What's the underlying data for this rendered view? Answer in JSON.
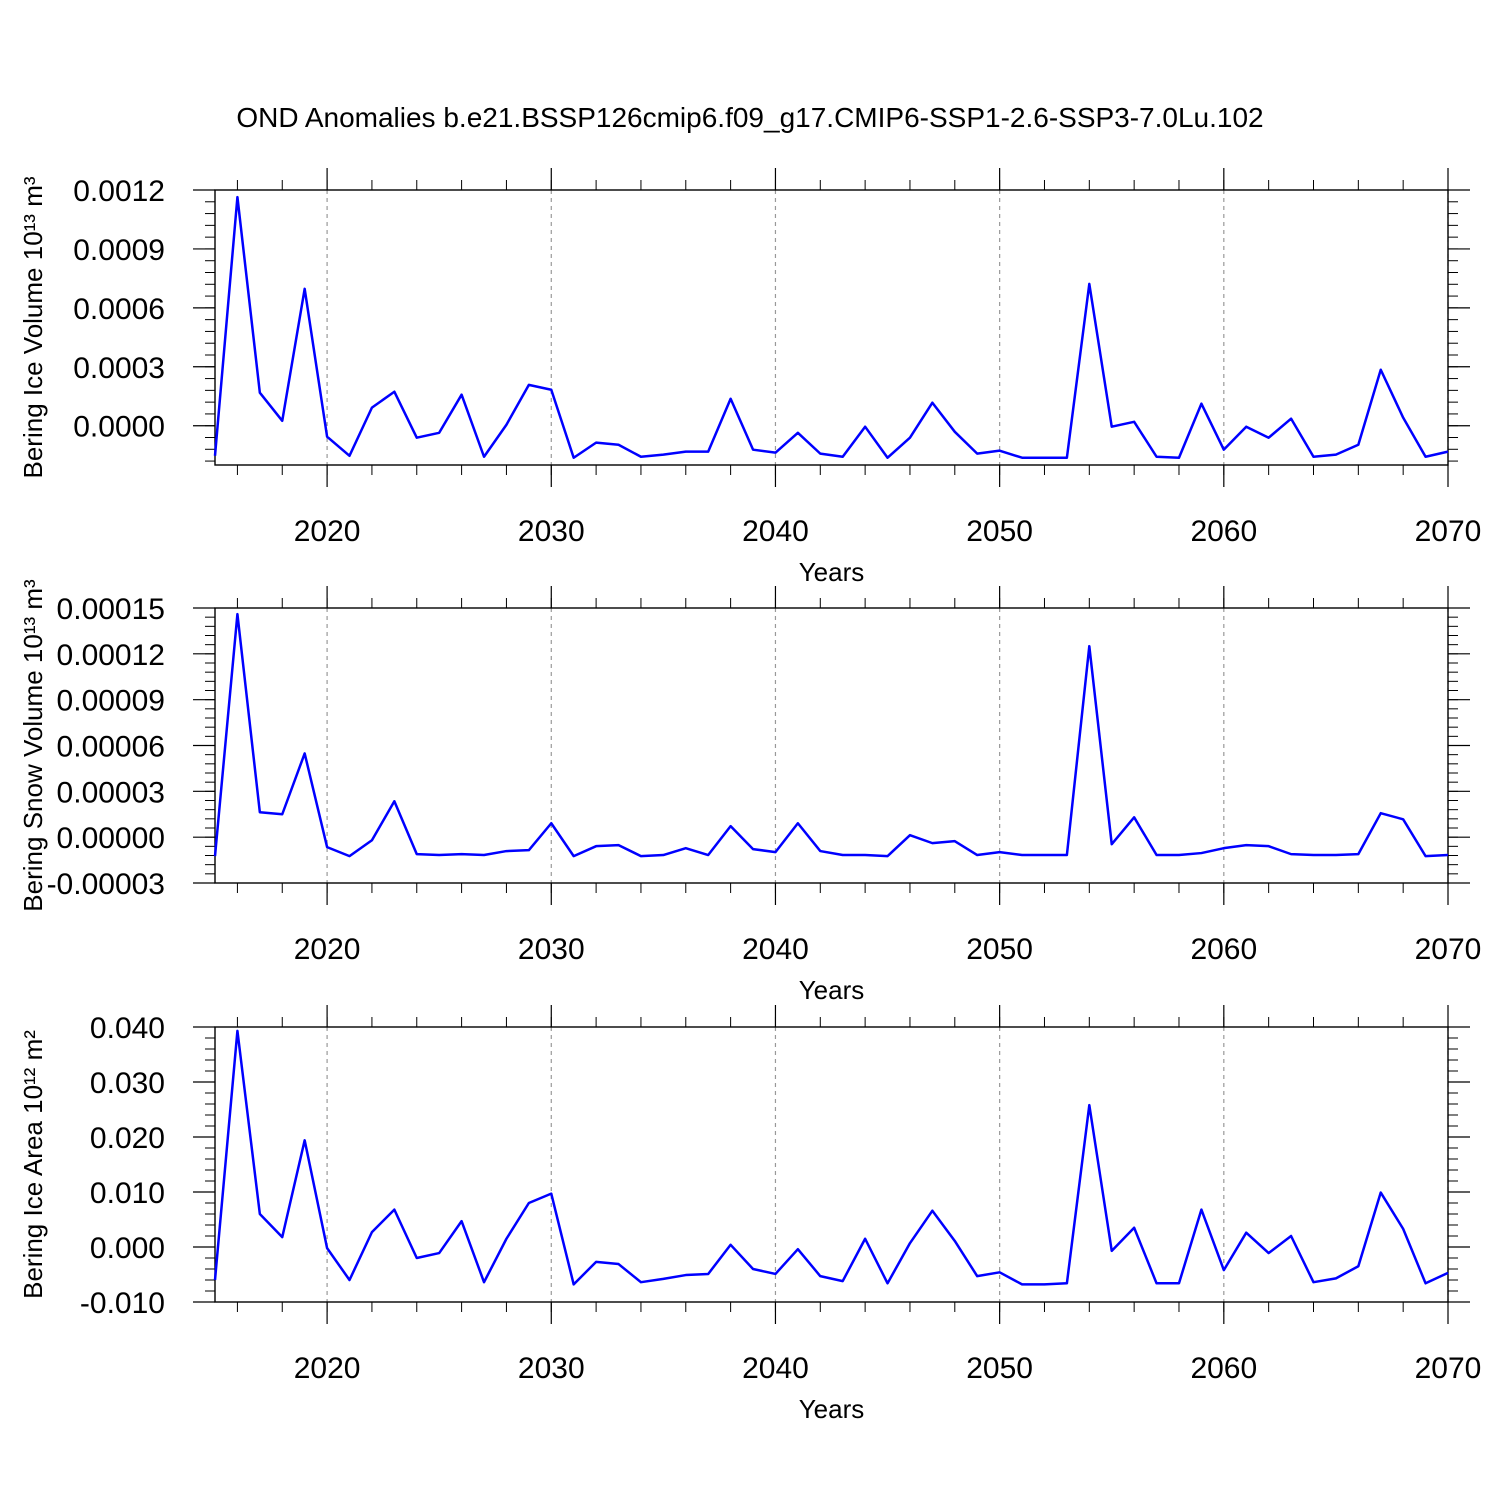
{
  "chart_data": [
    {
      "type": "line",
      "title": "OND Anomalies b.e21.BSSP126cmip6.f09_g17.CMIP6-SSP1-2.6-SSP3-7.0Lu.102",
      "ylabel": "Bering Ice Volume 10¹³ m³",
      "xlabel": "Years",
      "color": "#0000ff",
      "grid": "x",
      "xlim": [
        2015,
        2070
      ],
      "xticks": [
        2020,
        2030,
        2040,
        2050,
        2060,
        2070
      ],
      "ylim": [
        -0.0002,
        0.0012
      ],
      "yticks": [
        {
          "value": 0,
          "label": "0.0000"
        },
        {
          "value": 0.0003,
          "label": "0.0003"
        },
        {
          "value": 0.0006,
          "label": "0.0006"
        },
        {
          "value": 0.0009,
          "label": "0.0009"
        },
        {
          "value": 0.0012,
          "label": "0.0012"
        }
      ],
      "x": [
        2015,
        2016,
        2017,
        2018,
        2019,
        2020,
        2021,
        2022,
        2023,
        2024,
        2025,
        2026,
        2027,
        2028,
        2029,
        2030,
        2031,
        2032,
        2033,
        2034,
        2035,
        2036,
        2037,
        2038,
        2039,
        2040,
        2041,
        2042,
        2043,
        2044,
        2045,
        2046,
        2047,
        2048,
        2049,
        2050,
        2051,
        2052,
        2053,
        2054,
        2055,
        2056,
        2057,
        2058,
        2059,
        2060,
        2061,
        2062,
        2063,
        2064,
        2065,
        2066,
        2067,
        2068,
        2069,
        2070
      ],
      "values": [
        -0.000153,
        0.001164,
        0.000168,
        2.5e-05,
        0.000697,
        -5.6e-05,
        -0.000153,
        9.2e-05,
        0.000173,
        -6.1e-05,
        -3.6e-05,
        0.000158,
        -0.000158,
        5e-06,
        0.000208,
        0.000183,
        -0.000163,
        -8.6e-05,
        -9.7e-05,
        -0.000158,
        -0.000147,
        -0.000132,
        -0.000132,
        0.000137,
        -0.000122,
        -0.000137,
        -3.6e-05,
        -0.000142,
        -0.000158,
        -5e-06,
        -0.000163,
        -6.1e-05,
        0.000117,
        -3.1e-05,
        -0.000142,
        -0.000127,
        -0.000163,
        -0.000163,
        -0.000163,
        0.000722,
        -5e-06,
        2e-05,
        -0.000158,
        -0.000163,
        0.000112,
        -0.000122,
        -5e-06,
        -6.1e-05,
        3.6e-05,
        -0.000158,
        -0.000147,
        -9.7e-05,
        0.000285,
        4.1e-05,
        -0.000158,
        -0.000132
      ]
    },
    {
      "type": "line",
      "ylabel": "Bering Snow Volume 10¹³ m³",
      "xlabel": "Years",
      "color": "#0000ff",
      "grid": "x",
      "xlim": [
        2015,
        2070
      ],
      "xticks": [
        2020,
        2030,
        2040,
        2050,
        2060,
        2070
      ],
      "ylim": [
        -3e-05,
        0.00015
      ],
      "yticks": [
        {
          "value": -3e-05,
          "label": "-0.00003"
        },
        {
          "value": 0,
          "label": "0.00000"
        },
        {
          "value": 3e-05,
          "label": "0.00003"
        },
        {
          "value": 6e-05,
          "label": "0.00006"
        },
        {
          "value": 9e-05,
          "label": "0.00009"
        },
        {
          "value": 0.00012,
          "label": "0.00012"
        },
        {
          "value": 0.00015,
          "label": "0.00015"
        }
      ],
      "x": [
        2015,
        2016,
        2017,
        2018,
        2019,
        2020,
        2021,
        2022,
        2023,
        2024,
        2025,
        2026,
        2027,
        2028,
        2029,
        2030,
        2031,
        2032,
        2033,
        2034,
        2035,
        2036,
        2037,
        2038,
        2039,
        2040,
        2041,
        2042,
        2043,
        2044,
        2045,
        2046,
        2047,
        2048,
        2049,
        2050,
        2051,
        2052,
        2053,
        2054,
        2055,
        2056,
        2057,
        2058,
        2059,
        2060,
        2061,
        2062,
        2063,
        2064,
        2065,
        2066,
        2067,
        2068,
        2069,
        2070
      ],
      "values": [
        -1.24e-05,
        0.000146,
        1.63e-05,
        1.5e-05,
        5.48e-05,
        -6.5e-06,
        -1.24e-05,
        -2e-06,
        2.35e-05,
        -1.11e-05,
        -1.17e-05,
        -1.11e-05,
        -1.17e-05,
        -9.1e-06,
        -8.5e-06,
        9.1e-06,
        -1.24e-05,
        -5.9e-06,
        -5.2e-06,
        -1.24e-05,
        -1.17e-05,
        -7.2e-06,
        -1.17e-05,
        7.2e-06,
        -7.8e-06,
        -9.8e-06,
        9.1e-06,
        -9.1e-06,
        -1.17e-05,
        -1.17e-05,
        -1.24e-05,
        1.3e-06,
        -3.9e-06,
        -2.6e-06,
        -1.17e-05,
        -9.8e-06,
        -1.17e-05,
        -1.17e-05,
        -1.17e-05,
        0.000125,
        -4.6e-06,
        1.3e-05,
        -1.17e-05,
        -1.17e-05,
        -1.04e-05,
        -7.2e-06,
        -5.2e-06,
        -5.9e-06,
        -1.11e-05,
        -1.17e-05,
        -1.17e-05,
        -1.11e-05,
        1.57e-05,
        1.17e-05,
        -1.24e-05,
        -1.17e-05
      ]
    },
    {
      "type": "line",
      "ylabel": "Bering Ice Area 10¹² m²",
      "xlabel": "Years",
      "color": "#0000ff",
      "grid": "x",
      "xlim": [
        2015,
        2070
      ],
      "xticks": [
        2020,
        2030,
        2040,
        2050,
        2060,
        2070
      ],
      "ylim": [
        -0.01,
        0.04
      ],
      "yticks": [
        {
          "value": -0.01,
          "label": "-0.010"
        },
        {
          "value": 0,
          "label": "0.000"
        },
        {
          "value": 0.01,
          "label": "0.010"
        },
        {
          "value": 0.02,
          "label": "0.020"
        },
        {
          "value": 0.03,
          "label": "0.030"
        },
        {
          "value": 0.04,
          "label": "0.040"
        }
      ],
      "x": [
        2015,
        2016,
        2017,
        2018,
        2019,
        2020,
        2021,
        2022,
        2023,
        2024,
        2025,
        2026,
        2027,
        2028,
        2029,
        2030,
        2031,
        2032,
        2033,
        2034,
        2035,
        2036,
        2037,
        2038,
        2039,
        2040,
        2041,
        2042,
        2043,
        2044,
        2045,
        2046,
        2047,
        2048,
        2049,
        2050,
        2051,
        2052,
        2053,
        2054,
        2055,
        2056,
        2057,
        2058,
        2059,
        2060,
        2061,
        2062,
        2063,
        2064,
        2065,
        2066,
        2067,
        2068,
        2069,
        2070
      ],
      "values": [
        -0.006,
        0.0393,
        0.006,
        0.0018,
        0.0194,
        -0.0002,
        -0.006,
        0.0027,
        0.0068,
        -0.002,
        -0.0011,
        0.0047,
        -0.0064,
        0.0015,
        0.008,
        0.0097,
        -0.0068,
        -0.0027,
        -0.0031,
        -0.0064,
        -0.0058,
        -0.0051,
        -0.0049,
        0.0004,
        -0.004,
        -0.0049,
        -0.0004,
        -0.0053,
        -0.0062,
        0.0015,
        -0.0066,
        0.0007,
        0.0066,
        0.0011,
        -0.0053,
        -0.0046,
        -0.0068,
        -0.0068,
        -0.0066,
        0.0258,
        -0.0007,
        0.0035,
        -0.0066,
        -0.0066,
        0.0068,
        -0.0042,
        0.0026,
        -0.0011,
        0.002,
        -0.0064,
        -0.0057,
        -0.0035,
        0.0099,
        0.0033,
        -0.0066,
        -0.0047
      ]
    }
  ]
}
